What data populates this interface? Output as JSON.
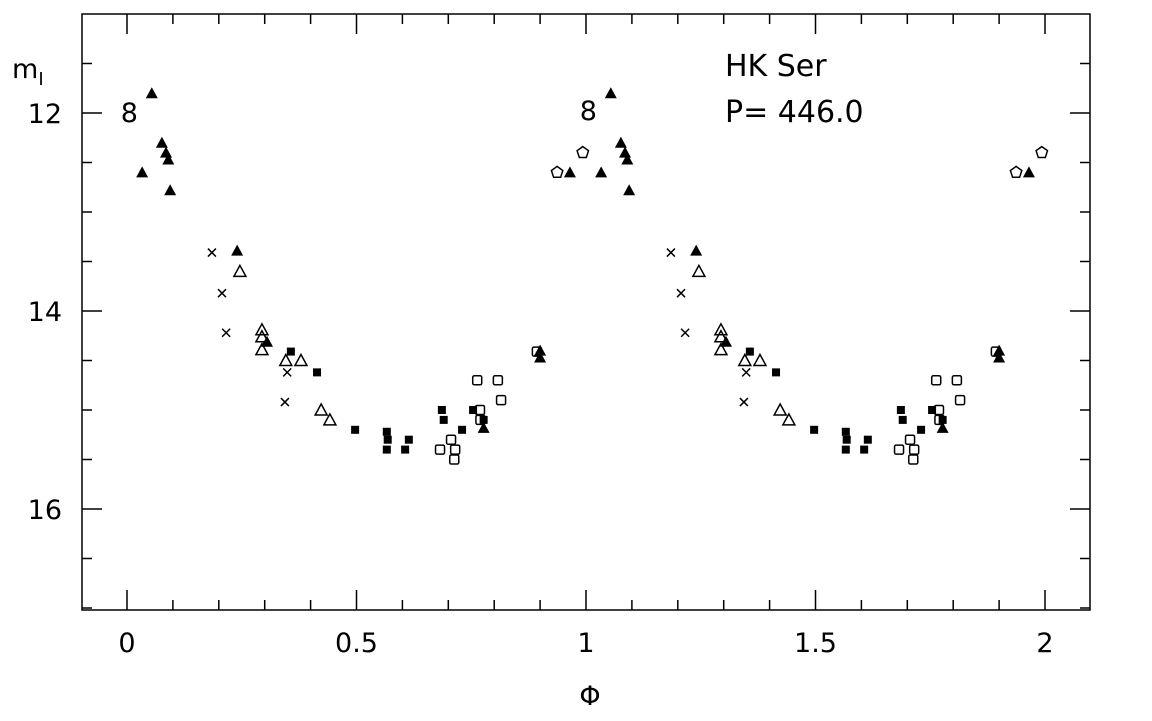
{
  "chart_data": {
    "type": "scatter",
    "title": "",
    "annotations": [
      "HK Ser",
      "P= 446.0"
    ],
    "xlabel": "Φ",
    "ylabel": "m",
    "ylabel_sub": "I",
    "xlim": [
      -0.1,
      2.1
    ],
    "ylim": [
      17.0,
      11.0
    ],
    "y_inverted": true,
    "grid": false,
    "xticks": [
      0,
      0.5,
      1,
      1.5,
      2
    ],
    "xtick_labels": [
      "0",
      "0.5",
      "1",
      "1.5",
      "2"
    ],
    "yticks": [
      12,
      14,
      16
    ],
    "ytick_labels": [
      "12",
      "14",
      "16"
    ],
    "phase_repeated": true,
    "markers_label": [
      {
        "text": "8",
        "phase": 0.005,
        "mag": 12.0
      },
      {
        "text": "8",
        "phase": 1.005,
        "mag": 11.98
      }
    ],
    "series": [
      {
        "name": "filled-triangle",
        "marker": "triangle-filled",
        "points": [
          [
            0.054,
            11.8
          ],
          [
            0.033,
            12.6
          ],
          [
            0.076,
            12.3
          ],
          [
            0.085,
            12.4
          ],
          [
            0.09,
            12.47
          ],
          [
            0.094,
            12.78
          ],
          [
            0.24,
            13.39
          ],
          [
            0.305,
            14.31
          ],
          [
            0.9,
            14.4
          ],
          [
            0.9,
            14.47
          ],
          [
            0.777,
            15.18
          ],
          [
            0.965,
            12.6
          ]
        ]
      },
      {
        "name": "open-triangle",
        "marker": "triangle-open",
        "points": [
          [
            0.246,
            13.6
          ],
          [
            0.294,
            14.19
          ],
          [
            0.294,
            14.26
          ],
          [
            0.294,
            14.39
          ],
          [
            0.346,
            14.5
          ],
          [
            0.379,
            14.5
          ],
          [
            0.423,
            15.0
          ],
          [
            0.442,
            15.1
          ]
        ]
      },
      {
        "name": "cross",
        "marker": "cross",
        "points": [
          [
            0.185,
            13.41
          ],
          [
            0.207,
            13.82
          ],
          [
            0.216,
            14.22
          ],
          [
            0.349,
            14.62
          ],
          [
            0.344,
            14.92
          ]
        ]
      },
      {
        "name": "filled-square",
        "marker": "square-filled",
        "points": [
          [
            0.357,
            14.41
          ],
          [
            0.414,
            14.62
          ],
          [
            0.497,
            15.2
          ],
          [
            0.566,
            15.22
          ],
          [
            0.568,
            15.3
          ],
          [
            0.566,
            15.4
          ],
          [
            0.606,
            15.4
          ],
          [
            0.614,
            15.3
          ],
          [
            0.686,
            15.0
          ],
          [
            0.69,
            15.1
          ],
          [
            0.73,
            15.2
          ],
          [
            0.754,
            15.0
          ],
          [
            0.777,
            15.1
          ]
        ]
      },
      {
        "name": "open-square",
        "marker": "square-open",
        "points": [
          [
            0.763,
            14.7
          ],
          [
            0.808,
            14.7
          ],
          [
            0.815,
            14.9
          ],
          [
            0.77,
            15.1
          ],
          [
            0.682,
            15.4
          ],
          [
            0.706,
            15.3
          ],
          [
            0.715,
            15.4
          ],
          [
            0.713,
            15.5
          ],
          [
            0.769,
            15.0
          ],
          [
            0.893,
            14.41
          ]
        ]
      },
      {
        "name": "open-pentagon",
        "marker": "pentagon-open",
        "points": [
          [
            0.937,
            12.6
          ],
          [
            0.993,
            12.4
          ]
        ]
      }
    ]
  }
}
